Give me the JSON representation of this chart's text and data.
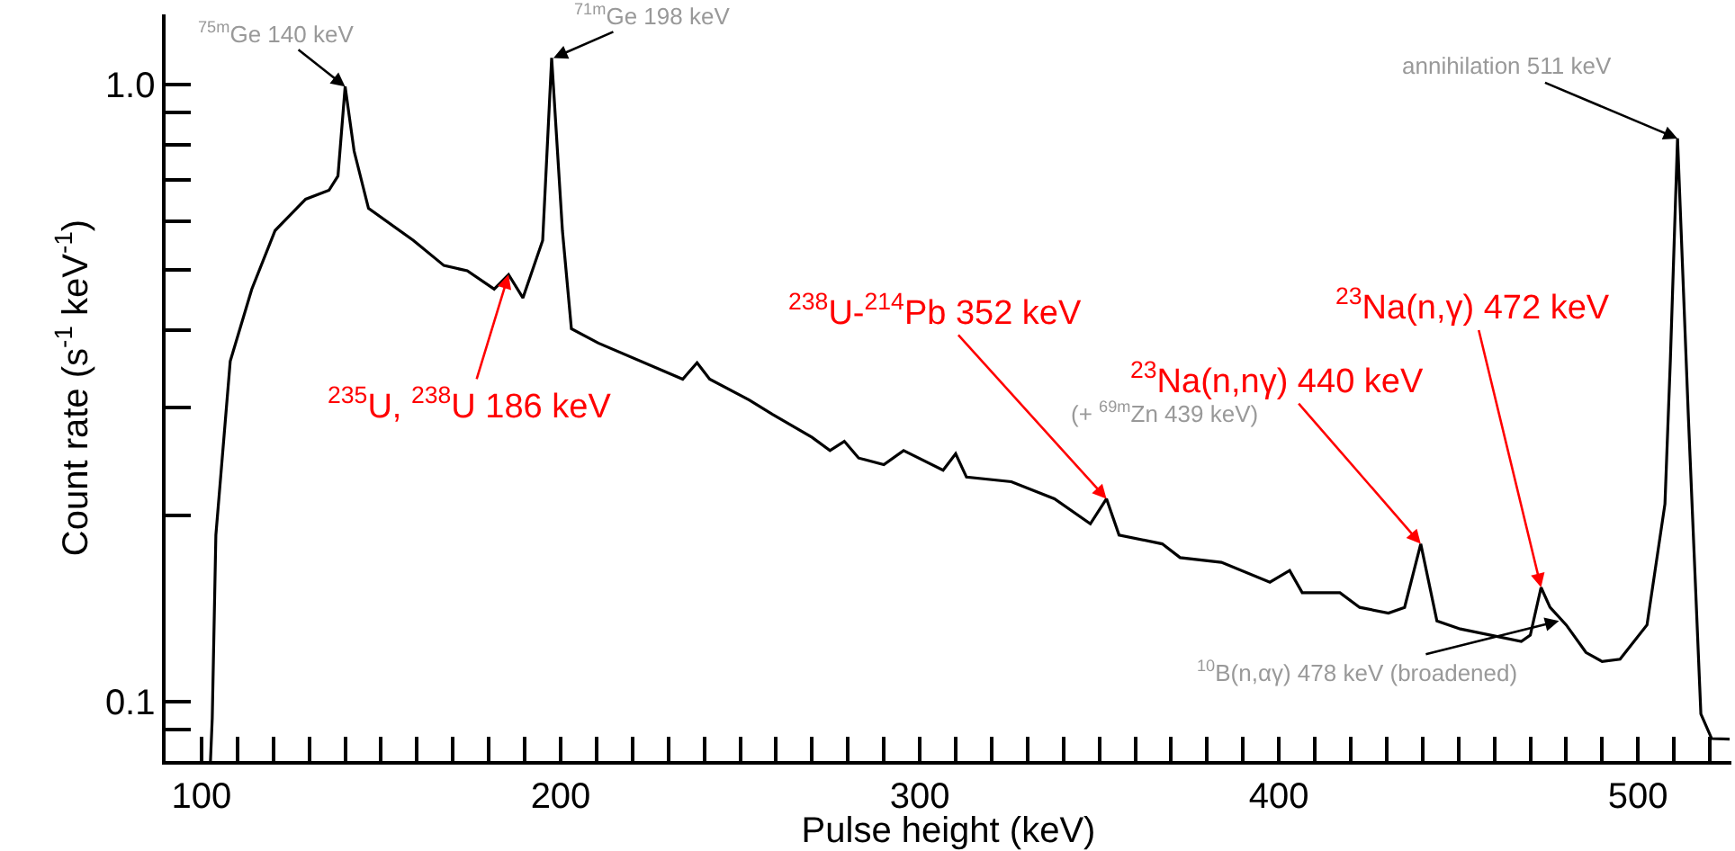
{
  "chart_data": {
    "type": "line",
    "xlabel": "Pulse height (keV)",
    "ylabel": "Count rate (s$^{-1}$ keV$^{-1}$)",
    "x": [
      102.5,
      103,
      104,
      108,
      114,
      120.5,
      129,
      135.5,
      138,
      140,
      142.5,
      146.5,
      159,
      167.5,
      174,
      181.5,
      185.5,
      189.5,
      195,
      197.5,
      200.5,
      203,
      210.5,
      234,
      238,
      241.5,
      252.5,
      259,
      270,
      275,
      279,
      283,
      290,
      295.5,
      306.5,
      310,
      313,
      325.5,
      337.5,
      347.5,
      352,
      355.5,
      367.5,
      372.5,
      384,
      397.5,
      403,
      406.5,
      417,
      422.5,
      430.5,
      435,
      439.5,
      444,
      450.5,
      467.5,
      470,
      473,
      475.5,
      480,
      485.5,
      490,
      495,
      502.5,
      507.5,
      509,
      511,
      514,
      517.5,
      520.5,
      525.5
    ],
    "series": [
      {
        "color": "#000000",
        "values": [
          0.08,
          0.094,
          0.186,
          0.356,
          0.466,
          0.58,
          0.652,
          0.674,
          0.711,
          0.993,
          0.78,
          0.63,
          0.559,
          0.509,
          0.499,
          0.466,
          0.492,
          0.451,
          0.559,
          1.105,
          0.58,
          0.402,
          0.381,
          0.333,
          0.354,
          0.333,
          0.308,
          0.292,
          0.268,
          0.255,
          0.264,
          0.248,
          0.242,
          0.255,
          0.237,
          0.252,
          0.231,
          0.227,
          0.213,
          0.194,
          0.213,
          0.186,
          0.18,
          0.171,
          0.168,
          0.156,
          0.163,
          0.15,
          0.15,
          0.142,
          0.139,
          0.142,
          0.18,
          0.135,
          0.131,
          0.125,
          0.128,
          0.153,
          0.142,
          0.133,
          0.12,
          0.116,
          0.117,
          0.133,
          0.209,
          0.357,
          0.818,
          0.291,
          0.0954,
          0.087,
          0.0868
        ]
      }
    ],
    "xlim": [
      90,
      526
    ],
    "ylim": [
      0.08,
      1.3
    ],
    "log": "y",
    "marker": "none",
    "line_style": "solid",
    "xticks": [
      {
        "value": 100,
        "label": "100"
      },
      {
        "value": 110,
        "label": null
      },
      {
        "value": 120,
        "label": null
      },
      {
        "value": 130,
        "label": null
      },
      {
        "value": 140,
        "label": null
      },
      {
        "value": 150,
        "label": null
      },
      {
        "value": 160,
        "label": null
      },
      {
        "value": 170,
        "label": null
      },
      {
        "value": 180,
        "label": null
      },
      {
        "value": 190,
        "label": null
      },
      {
        "value": 200,
        "label": "200"
      },
      {
        "value": 210,
        "label": null
      },
      {
        "value": 220,
        "label": null
      },
      {
        "value": 230,
        "label": null
      },
      {
        "value": 240,
        "label": null
      },
      {
        "value": 250,
        "label": null
      },
      {
        "value": 260,
        "label": null
      },
      {
        "value": 270,
        "label": null
      },
      {
        "value": 280,
        "label": null
      },
      {
        "value": 290,
        "label": null
      },
      {
        "value": 300,
        "label": "300"
      },
      {
        "value": 310,
        "label": null
      },
      {
        "value": 320,
        "label": null
      },
      {
        "value": 330,
        "label": null
      },
      {
        "value": 340,
        "label": null
      },
      {
        "value": 350,
        "label": null
      },
      {
        "value": 360,
        "label": null
      },
      {
        "value": 370,
        "label": null
      },
      {
        "value": 380,
        "label": null
      },
      {
        "value": 390,
        "label": null
      },
      {
        "value": 400,
        "label": "400"
      },
      {
        "value": 410,
        "label": null
      },
      {
        "value": 420,
        "label": null
      },
      {
        "value": 430,
        "label": null
      },
      {
        "value": 440,
        "label": null
      },
      {
        "value": 450,
        "label": null
      },
      {
        "value": 460,
        "label": null
      },
      {
        "value": 470,
        "label": null
      },
      {
        "value": 480,
        "label": null
      },
      {
        "value": 490,
        "label": null
      },
      {
        "value": 500,
        "label": "500"
      },
      {
        "value": 510,
        "label": null
      },
      {
        "value": 520,
        "label": null
      }
    ],
    "yticks": [
      {
        "value": 0.09,
        "label": null
      },
      {
        "value": 0.1,
        "label": "0.1"
      },
      {
        "value": 0.2,
        "label": null
      },
      {
        "value": 0.3,
        "label": null
      },
      {
        "value": 0.4,
        "label": null
      },
      {
        "value": 0.5,
        "label": null
      },
      {
        "value": 0.6,
        "label": null
      },
      {
        "value": 0.7,
        "label": null
      },
      {
        "value": 0.8,
        "label": null
      },
      {
        "value": 0.9,
        "label": null
      },
      {
        "value": 1.0,
        "label": "1.0"
      }
    ],
    "annotations": [
      {
        "text": "$^{75m}$Ge 140 keV",
        "x": 140,
        "y": 0.993
      },
      {
        "text": "$^{71m}$Ge 198 keV",
        "x": 198,
        "y": 1.105
      },
      {
        "text": "$^{235}$U, $^{238}$U 186 keV",
        "x": 185.5,
        "y": 0.492
      },
      {
        "text": "$^{238}$U-$^{214}$Pb 352 keV",
        "x": 352,
        "y": 0.213
      },
      {
        "text": "$^{23}$Na(n,nγ) 440 keV",
        "x": 439.5,
        "y": 0.18
      },
      "(+ $^{69m}$Zn 439 keV)",
      {
        "text": "$^{23}$Na(n,γ) 472 keV",
        "x": 473,
        "y": 0.153
      },
      {
        "text": "$^{10}$B(n,αγ) 478 keV (broadened)",
        "x": 478,
        "y": 0.135
      },
      {
        "text": "annihilation 511 keV",
        "x": 511,
        "y": 0.818
      }
    ]
  }
}
